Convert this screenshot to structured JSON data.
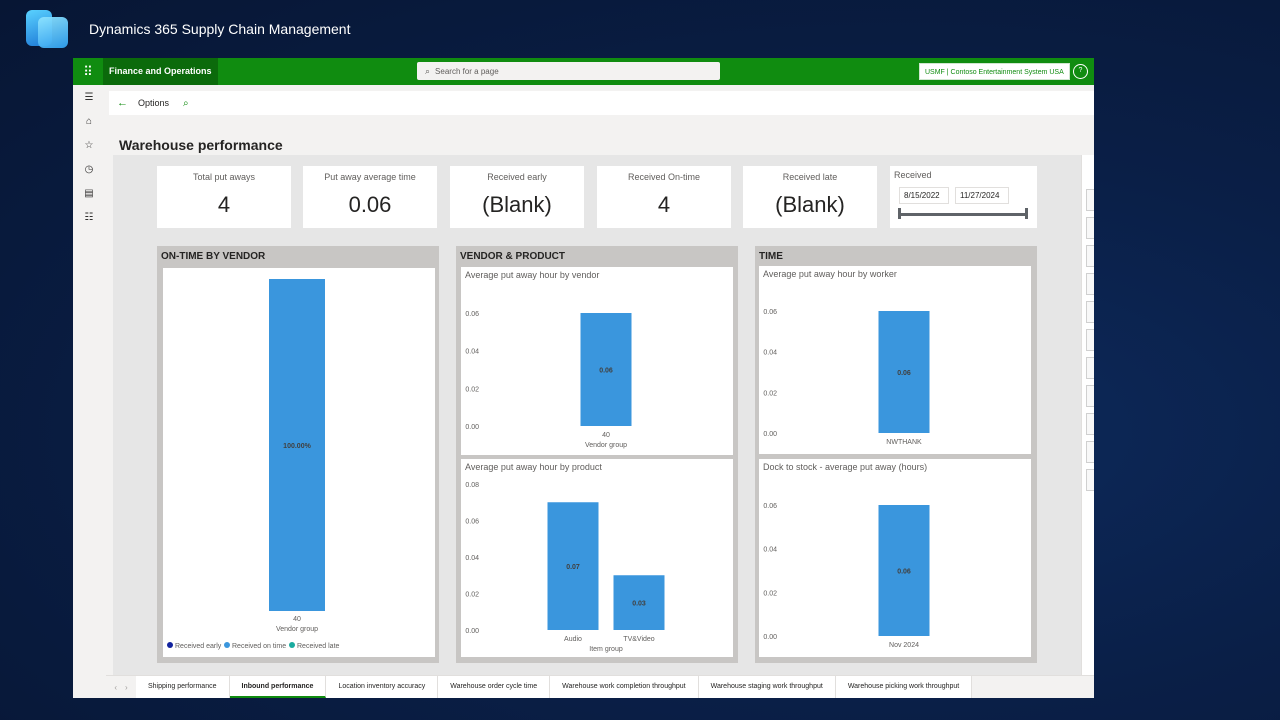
{
  "brand": {
    "title": "Dynamics 365 Supply Chain Management"
  },
  "topbar": {
    "app_name": "Finance and Operations",
    "search_placeholder": "Search for a page",
    "company": "USMF | Contoso Entertainment System USA"
  },
  "actionbar": {
    "options_label": "Options"
  },
  "page": {
    "title": "Warehouse performance"
  },
  "kpis": [
    {
      "label": "Total put aways",
      "value": "4"
    },
    {
      "label": "Put away average time",
      "value": "0.06"
    },
    {
      "label": "Received early",
      "value": "(Blank)"
    },
    {
      "label": "Received On-time",
      "value": "4"
    },
    {
      "label": "Received late",
      "value": "(Blank)"
    }
  ],
  "slicer": {
    "label": "Received",
    "start": "8/15/2022",
    "end": "11/27/2024"
  },
  "sections": {
    "vendor": "ON-TIME BY VENDOR",
    "vendor_product": "VENDOR & PRODUCT",
    "time": "TIME"
  },
  "colors": {
    "bar": "#3a96dd",
    "accent": "#108c10",
    "early": "#12239e",
    "ontime": "#3a96dd",
    "late": "#1aab9f"
  },
  "chart_data": [
    {
      "type": "bar",
      "title": "",
      "categories": [
        "40"
      ],
      "xlabel": "Vendor group",
      "series": [
        {
          "name": "Received on time",
          "values": [
            100
          ]
        }
      ],
      "data_labels": [
        "100.00%"
      ],
      "legend": [
        "Received early",
        "Received on time",
        "Received late"
      ],
      "ylim": [
        0,
        100
      ]
    },
    {
      "type": "bar",
      "title": "Average put away hour by vendor",
      "categories": [
        "40"
      ],
      "values": [
        0.06
      ],
      "xlabel": "Vendor group",
      "yticks": [
        "0.00",
        "0.02",
        "0.04",
        "0.06"
      ],
      "ylim": [
        0,
        0.06
      ]
    },
    {
      "type": "bar",
      "title": "Average put away hour by product",
      "categories": [
        "Audio",
        "TV&Video"
      ],
      "values": [
        0.07,
        0.03
      ],
      "xlabel": "Item group",
      "yticks": [
        "0.00",
        "0.02",
        "0.04",
        "0.06",
        "0.08"
      ],
      "ylim": [
        0,
        0.08
      ]
    },
    {
      "type": "bar",
      "title": "Average put away hour by worker",
      "categories": [
        "NWTHANK"
      ],
      "values": [
        0.06
      ],
      "xlabel": "",
      "yticks": [
        "0.00",
        "0.02",
        "0.04",
        "0.06"
      ],
      "ylim": [
        0,
        0.06
      ]
    },
    {
      "type": "bar",
      "title": "Dock to stock - average put away (hours)",
      "categories": [
        "Nov 2024"
      ],
      "values": [
        0.06
      ],
      "xlabel": "",
      "yticks": [
        "0.00",
        "0.02",
        "0.04",
        "0.06"
      ],
      "ylim": [
        0,
        0.06
      ]
    }
  ],
  "tabs": [
    {
      "label": "Shipping performance",
      "active": false
    },
    {
      "label": "Inbound performance",
      "active": true
    },
    {
      "label": "Location inventory accuracy",
      "active": false
    },
    {
      "label": "Warehouse order cycle time",
      "active": false
    },
    {
      "label": "Warehouse work completion throughput",
      "active": false
    },
    {
      "label": "Warehouse staging work throughput",
      "active": false
    },
    {
      "label": "Warehouse picking work throughput",
      "active": false
    }
  ]
}
